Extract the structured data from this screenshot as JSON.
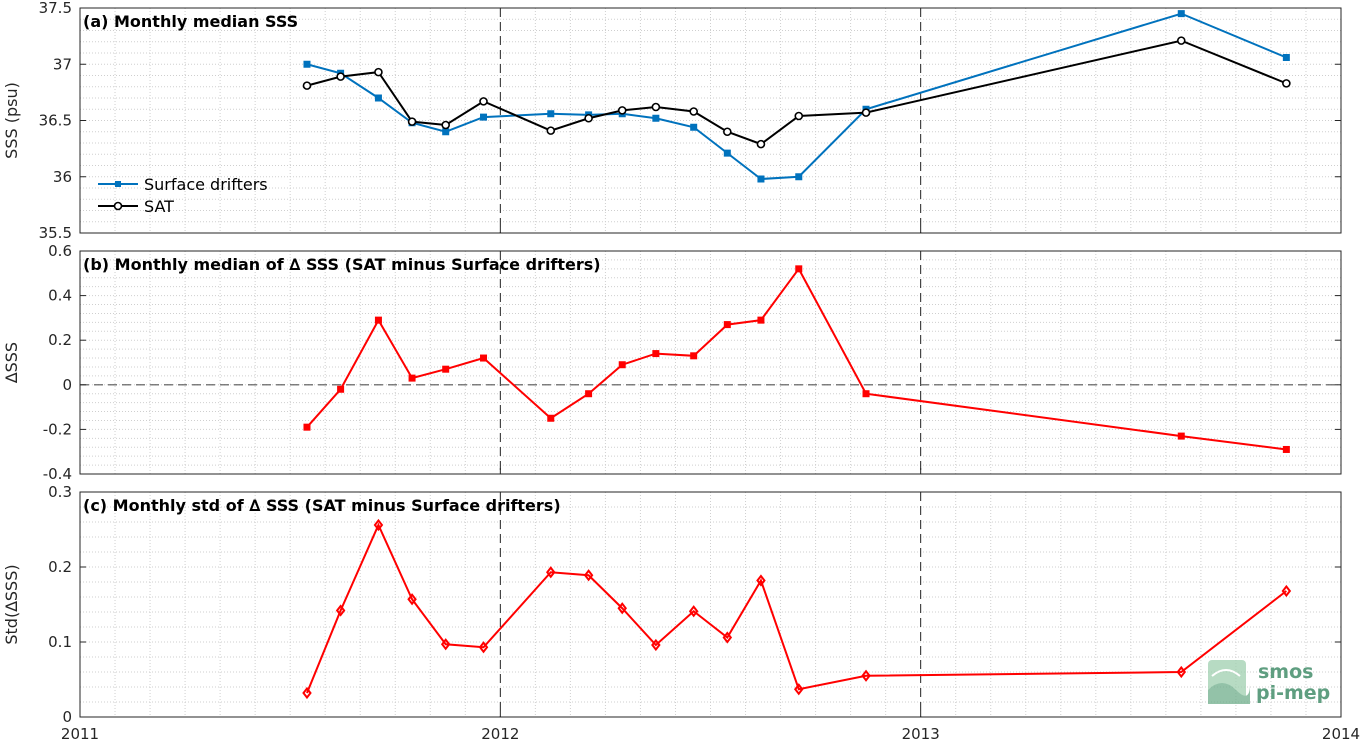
{
  "chart_data": [
    {
      "type": "line",
      "title": "(a) Monthly median SSS",
      "ylabel": "SSS (psu)",
      "xlim": [
        2011,
        2014
      ],
      "ylim": [
        35.5,
        37.5
      ],
      "yticks": [
        35.5,
        36,
        36.5,
        37,
        37.5
      ],
      "ytick_labels": [
        "35.5",
        "36",
        "36.5",
        "37",
        "37.5"
      ],
      "grid": "minor-dotted",
      "legend": "bottom-left",
      "vlines": [
        2012,
        2013
      ],
      "series": [
        {
          "name": "Surface drifters",
          "color": "#0072bd",
          "marker": "square",
          "x": [
            2011.54,
            2011.62,
            2011.71,
            2011.79,
            2011.87,
            2011.96,
            2012.12,
            2012.21,
            2012.29,
            2012.37,
            2012.46,
            2012.54,
            2012.62,
            2012.71,
            2012.87,
            2013.62,
            2013.87
          ],
          "y": [
            37.0,
            36.92,
            36.7,
            36.48,
            36.4,
            36.53,
            36.56,
            36.55,
            36.56,
            36.52,
            36.44,
            36.21,
            35.98,
            36.0,
            36.6,
            37.45,
            37.06
          ]
        },
        {
          "name": "SAT",
          "color": "#000000",
          "marker": "circle",
          "x": [
            2011.54,
            2011.62,
            2011.71,
            2011.79,
            2011.87,
            2011.96,
            2012.12,
            2012.21,
            2012.29,
            2012.37,
            2012.46,
            2012.54,
            2012.62,
            2012.71,
            2012.87,
            2013.62,
            2013.87
          ],
          "y": [
            36.81,
            36.89,
            36.93,
            36.49,
            36.46,
            36.67,
            36.41,
            36.52,
            36.59,
            36.62,
            36.58,
            36.4,
            36.29,
            36.54,
            36.57,
            37.21,
            36.83
          ]
        }
      ]
    },
    {
      "type": "line",
      "title": "(b) Monthly median of ∆ SSS (SAT minus Surface drifters)",
      "ylabel": "∆SSS",
      "xlim": [
        2011,
        2014
      ],
      "ylim": [
        -0.4,
        0.6
      ],
      "yticks": [
        -0.4,
        -0.2,
        0,
        0.2,
        0.4,
        0.6
      ],
      "ytick_labels": [
        "-0.4",
        "-0.2",
        "0",
        "0.2",
        "0.4",
        "0.6"
      ],
      "grid": "minor-dotted",
      "hline": 0,
      "vlines": [
        2012,
        2013
      ],
      "series": [
        {
          "color": "#ff0000",
          "marker": "square",
          "x": [
            2011.54,
            2011.62,
            2011.71,
            2011.79,
            2011.87,
            2011.96,
            2012.12,
            2012.21,
            2012.29,
            2012.37,
            2012.46,
            2012.54,
            2012.62,
            2012.71,
            2012.87,
            2013.62,
            2013.87
          ],
          "y": [
            -0.19,
            -0.02,
            0.29,
            0.03,
            0.07,
            0.12,
            -0.15,
            -0.04,
            0.09,
            0.14,
            0.13,
            0.27,
            0.29,
            0.52,
            -0.04,
            -0.23,
            -0.29
          ]
        }
      ]
    },
    {
      "type": "line",
      "title": "(c) Monthly std of ∆ SSS (SAT minus Surface drifters)",
      "ylabel": "Std(∆SSS)",
      "xlim": [
        2011,
        2014
      ],
      "ylim": [
        0,
        0.3
      ],
      "yticks": [
        0,
        0.1,
        0.2,
        0.3
      ],
      "ytick_labels": [
        "0",
        "0.1",
        "0.2",
        "0.3"
      ],
      "xticks": [
        2011,
        2012,
        2013,
        2014
      ],
      "xtick_labels": [
        "2011",
        "2012",
        "2013",
        "2014"
      ],
      "grid": "minor-dotted",
      "vlines": [
        2012,
        2013
      ],
      "series": [
        {
          "color": "#ff0000",
          "marker": "diamond",
          "x": [
            2011.54,
            2011.62,
            2011.71,
            2011.79,
            2011.87,
            2011.96,
            2012.12,
            2012.21,
            2012.29,
            2012.37,
            2012.46,
            2012.54,
            2012.62,
            2012.71,
            2012.87,
            2013.62,
            2013.87
          ],
          "y": [
            0.032,
            0.142,
            0.256,
            0.157,
            0.097,
            0.093,
            0.193,
            0.189,
            0.145,
            0.096,
            0.141,
            0.106,
            0.182,
            0.037,
            0.055,
            0.06,
            0.168
          ]
        }
      ]
    }
  ],
  "logo": {
    "line1": "smos",
    "line2": "pi-mep"
  }
}
